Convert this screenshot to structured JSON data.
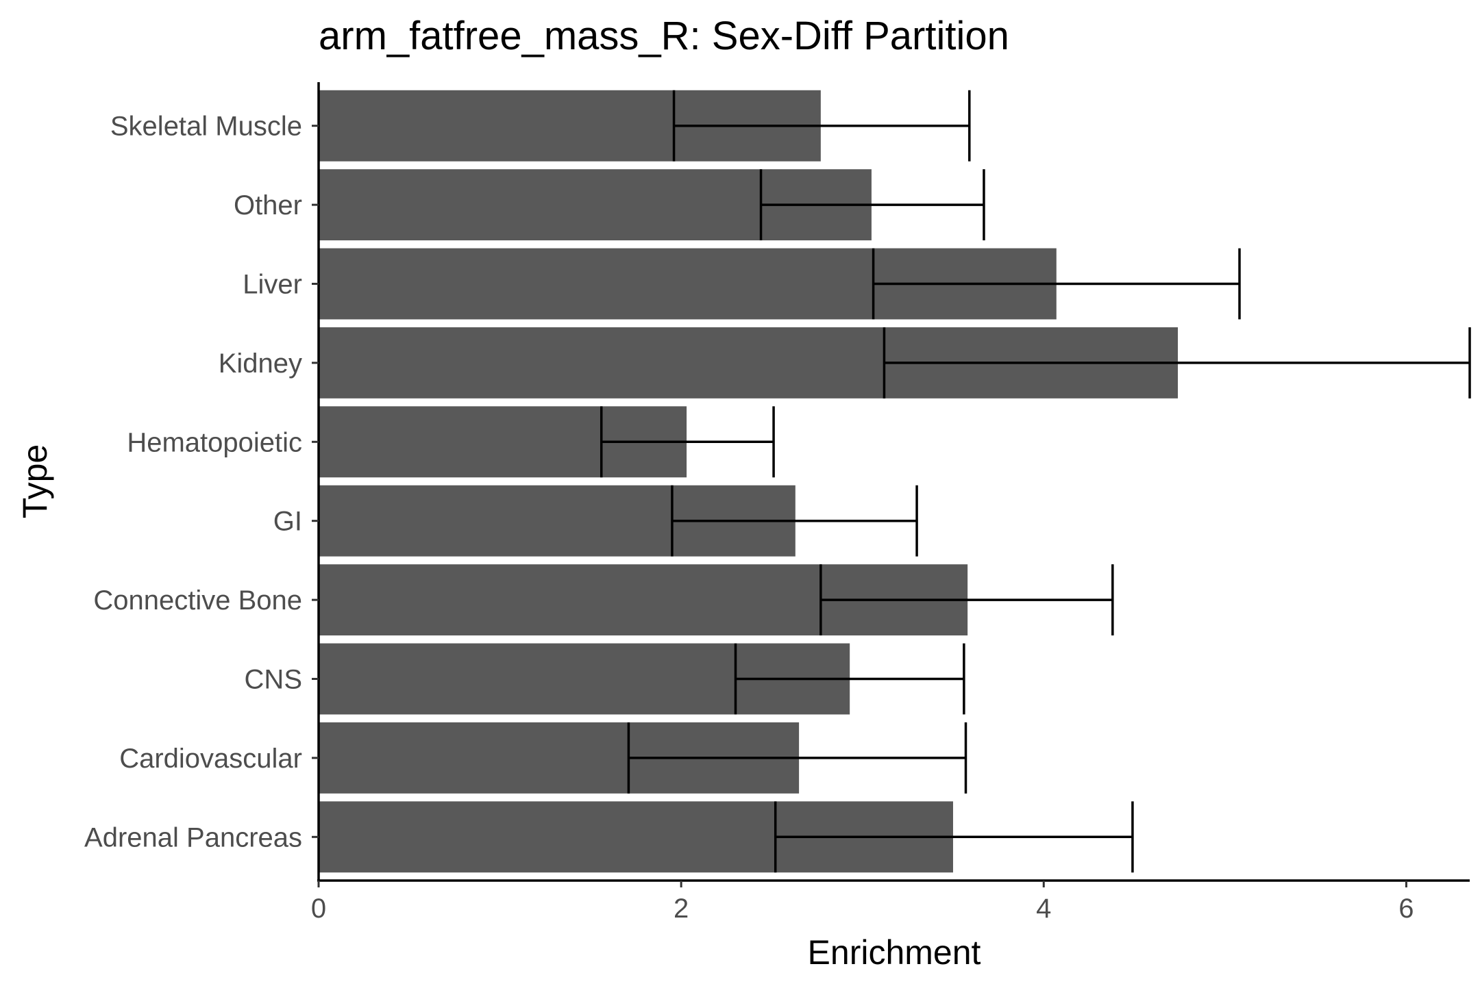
{
  "chart_data": {
    "type": "bar",
    "orientation": "horizontal",
    "title": "arm_fatfree_mass_R: Sex-Diff Partition",
    "xlabel": "Enrichment",
    "ylabel": "Type",
    "xlim": [
      0,
      6.35
    ],
    "xticks": [
      0,
      2,
      4,
      6
    ],
    "grid": false,
    "legend": "none",
    "bar_color": "#595959",
    "categories": [
      "Adrenal Pancreas",
      "Cardiovascular",
      "CNS",
      "Connective Bone",
      "GI",
      "Hematopoietic",
      "Kidney",
      "Liver",
      "Other",
      "Skeletal Muscle"
    ],
    "values": [
      3.5,
      2.65,
      2.93,
      3.58,
      2.63,
      2.03,
      4.74,
      4.07,
      3.05,
      2.77
    ],
    "error_low": [
      2.52,
      1.71,
      2.3,
      2.77,
      1.95,
      1.56,
      3.12,
      3.06,
      2.44,
      1.96
    ],
    "error_high": [
      4.49,
      3.57,
      3.56,
      4.38,
      3.3,
      2.51,
      6.35,
      5.08,
      3.67,
      3.59
    ]
  }
}
